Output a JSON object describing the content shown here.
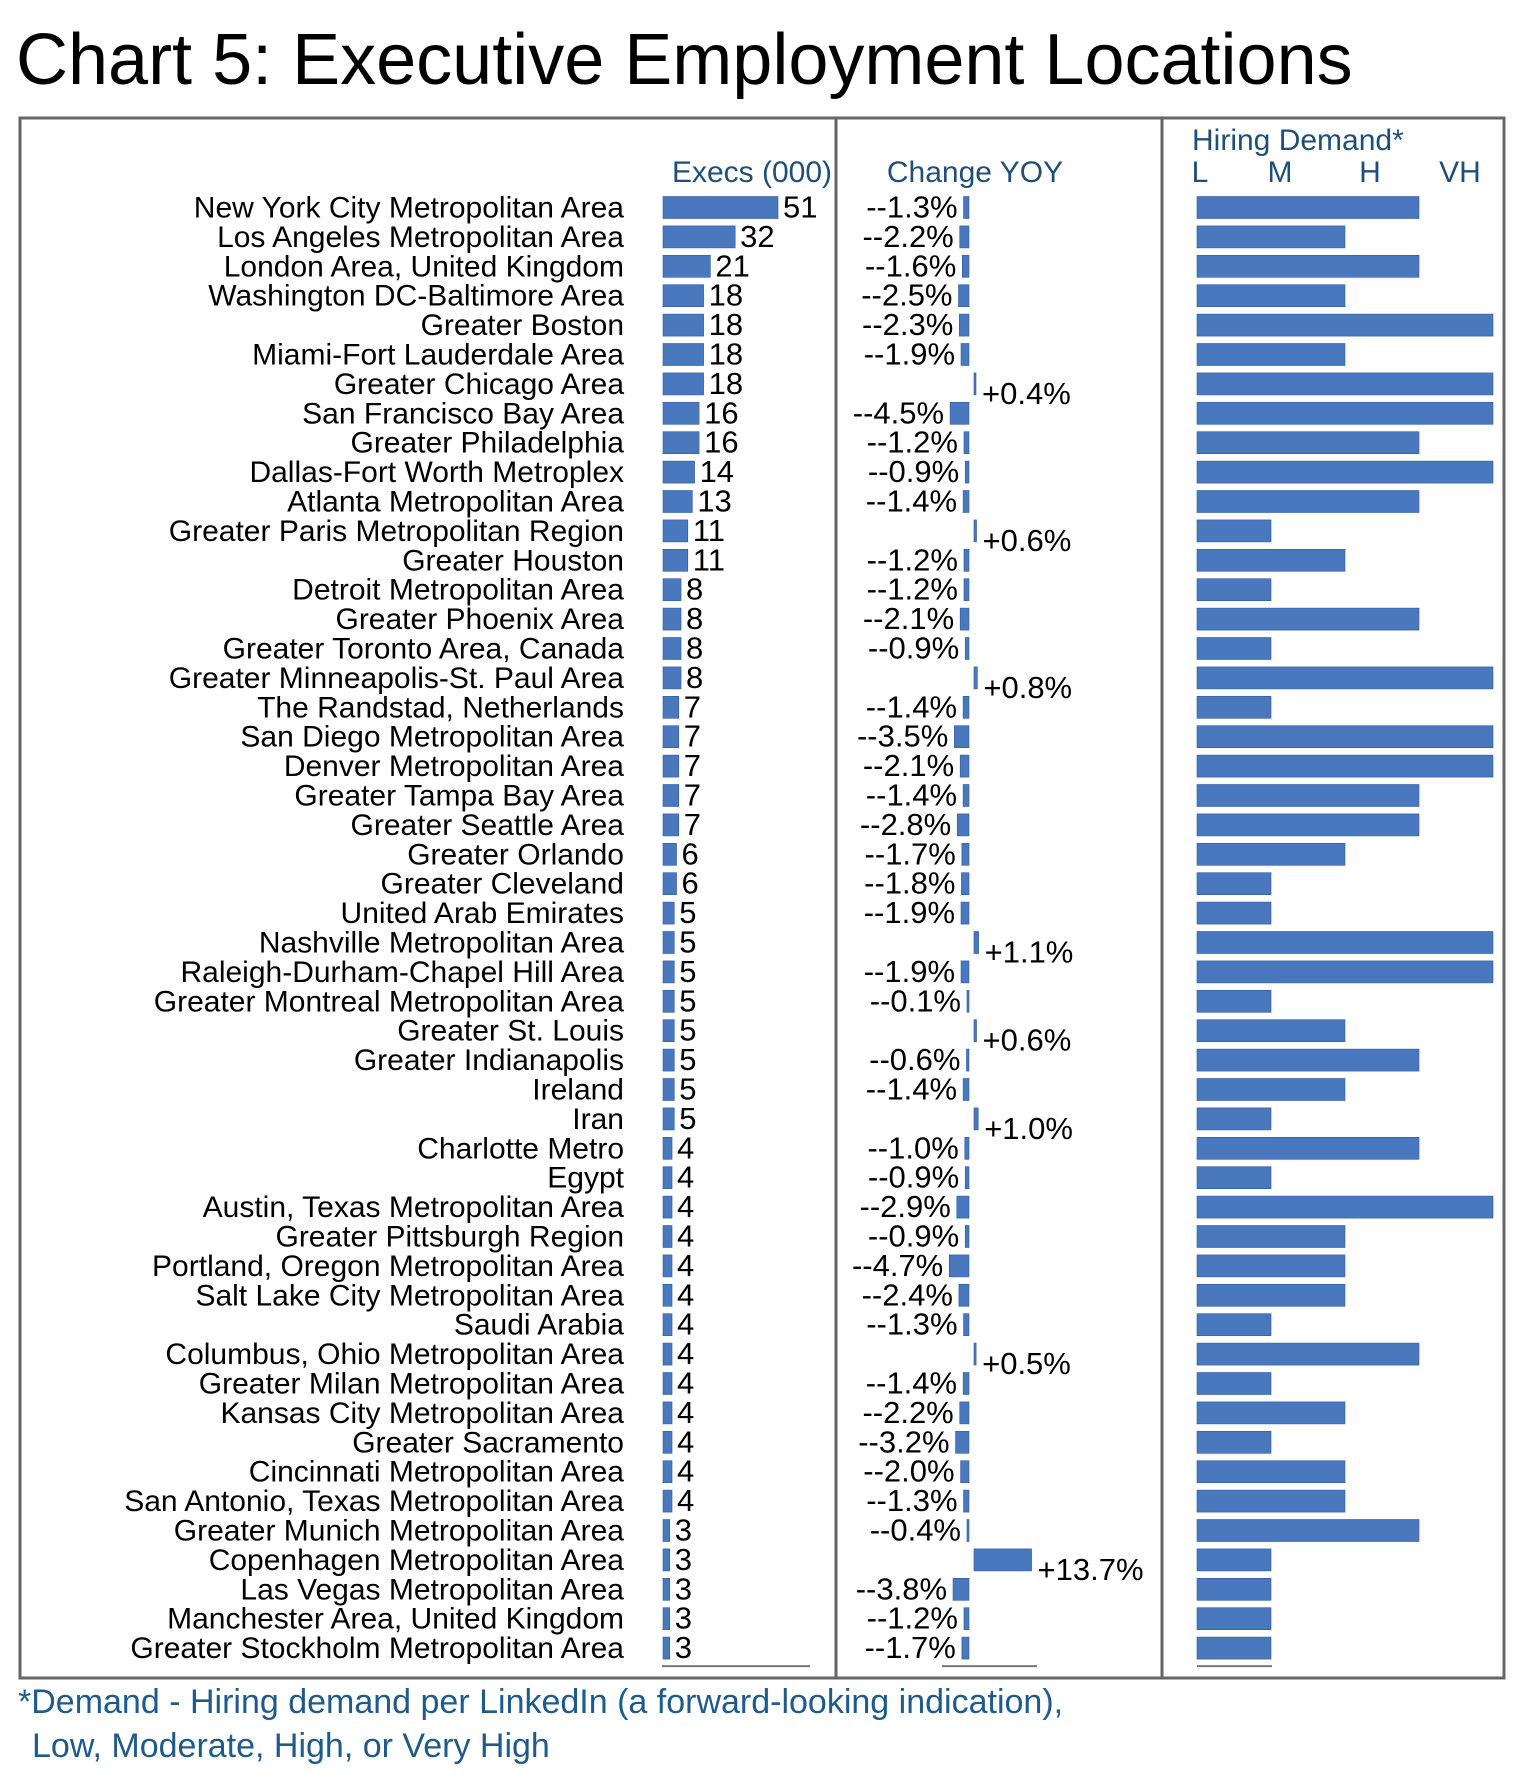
{
  "title": "Chart 5: Executive Employment Locations",
  "footnote": {
    "line1": "*Demand - Hiring demand per LinkedIn (a forward-looking indication),",
    "line2": "Low, Moderate, High, or Very High"
  },
  "colors": {
    "bar": "#4a78bf",
    "bar_edge": "#2d5a9a",
    "header": "#1f4e79",
    "frame": "#666666",
    "note": "#1f5a8c"
  },
  "chart_data": {
    "type": "bar",
    "headers": {
      "execs": "Execs (000)",
      "change": "Change YOY",
      "demand": "Hiring Demand*"
    },
    "demand_levels": [
      "L",
      "M",
      "H",
      "VH"
    ],
    "categories": [
      "New York City Metropolitan Area",
      "Los Angeles Metropolitan Area",
      "London Area, United Kingdom",
      "Washington DC-Baltimore Area",
      "Greater Boston",
      "Miami-Fort Lauderdale Area",
      "Greater Chicago Area",
      "San Francisco Bay Area",
      "Greater Philadelphia",
      "Dallas-Fort Worth Metroplex",
      "Atlanta Metropolitan Area",
      "Greater Paris Metropolitan Region",
      "Greater Houston",
      "Detroit Metropolitan Area",
      "Greater Phoenix Area",
      "Greater Toronto Area, Canada",
      "Greater Minneapolis-St. Paul Area",
      "The Randstad, Netherlands",
      "San Diego Metropolitan Area",
      "Denver Metropolitan Area",
      "Greater Tampa Bay Area",
      "Greater Seattle Area",
      "Greater Orlando",
      "Greater Cleveland",
      "United Arab Emirates",
      "Nashville Metropolitan Area",
      "Raleigh-Durham-Chapel Hill Area",
      "Greater Montreal Metropolitan Area",
      "Greater St. Louis",
      "Greater Indianapolis",
      "Ireland",
      "Iran",
      "Charlotte Metro",
      "Egypt",
      "Austin, Texas Metropolitan Area",
      "Greater Pittsburgh Region",
      "Portland, Oregon Metropolitan Area",
      "Salt Lake City Metropolitan Area",
      "Saudi Arabia",
      "Columbus, Ohio Metropolitan Area",
      "Greater Milan Metropolitan Area",
      "Kansas City Metropolitan Area",
      "Greater Sacramento",
      "Cincinnati Metropolitan Area",
      "San Antonio, Texas Metropolitan Area",
      "Greater Munich Metropolitan Area",
      "Copenhagen Metropolitan Area",
      "Las Vegas Metropolitan Area",
      "Manchester Area, United Kingdom",
      "Greater Stockholm Metropolitan Area"
    ],
    "execs": [
      51,
      32,
      21,
      18,
      18,
      18,
      18,
      16,
      16,
      14,
      13,
      11,
      11,
      8,
      8,
      8,
      8,
      7,
      7,
      7,
      7,
      7,
      6,
      6,
      5,
      5,
      5,
      5,
      5,
      5,
      5,
      5,
      4,
      4,
      4,
      4,
      4,
      4,
      4,
      4,
      4,
      4,
      4,
      4,
      4,
      3,
      3,
      3,
      3,
      3
    ],
    "change_yoy": [
      -1.3,
      -2.2,
      -1.6,
      -2.5,
      -2.3,
      -1.9,
      0.4,
      -4.5,
      -1.2,
      -0.9,
      -1.4,
      0.6,
      -1.2,
      -1.2,
      -2.1,
      -0.9,
      0.8,
      -1.4,
      -3.5,
      -2.1,
      -1.4,
      -2.8,
      -1.7,
      -1.8,
      -1.9,
      1.1,
      -1.9,
      -0.1,
      0.6,
      -0.6,
      -1.4,
      1.0,
      -1.0,
      -0.9,
      -2.9,
      -0.9,
      -4.7,
      -2.4,
      -1.3,
      0.5,
      -1.4,
      -2.2,
      -3.2,
      -2.0,
      -1.3,
      -0.4,
      13.7,
      -3.8,
      -1.2,
      -1.7
    ],
    "change_labels": [
      "--1.3%",
      "--2.2%",
      "--1.6%",
      "--2.5%",
      "--2.3%",
      "--1.9%",
      "+0.4%",
      "--4.5%",
      "--1.2%",
      "--0.9%",
      "--1.4%",
      "+0.6%",
      "--1.2%",
      "--1.2%",
      "--2.1%",
      "--0.9%",
      "+0.8%",
      "--1.4%",
      "--3.5%",
      "--2.1%",
      "--1.4%",
      "--2.8%",
      "--1.7%",
      "--1.8%",
      "--1.9%",
      "+1.1%",
      "--1.9%",
      "--0.1%",
      "+0.6%",
      "--0.6%",
      "--1.4%",
      "+1.0%",
      "--1.0%",
      "--0.9%",
      "--2.9%",
      "--0.9%",
      "--4.7%",
      "--2.4%",
      "--1.3%",
      "+0.5%",
      "--1.4%",
      "--2.2%",
      "--3.2%",
      "--2.0%",
      "--1.3%",
      "--0.4%",
      "+13.7%",
      "--3.8%",
      "--1.2%",
      "--1.7%"
    ],
    "hiring_demand": [
      3,
      2,
      3,
      2,
      4,
      2,
      4,
      4,
      3,
      4,
      3,
      1,
      2,
      1,
      3,
      1,
      4,
      1,
      4,
      4,
      3,
      3,
      2,
      1,
      1,
      4,
      4,
      1,
      2,
      3,
      2,
      1,
      3,
      1,
      4,
      2,
      2,
      2,
      1,
      3,
      1,
      2,
      1,
      2,
      2,
      3,
      1,
      1,
      1,
      1
    ],
    "execs_axis": [
      0,
      51
    ],
    "demand_scale": "1 = L (Low), 2 = M (Moderate), 3 = H (High), 4 = VH (Very High)"
  }
}
